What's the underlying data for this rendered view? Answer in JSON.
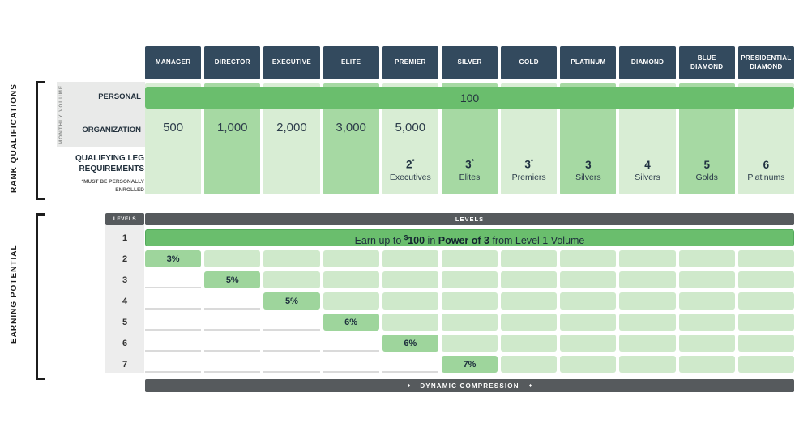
{
  "colors": {
    "header_navy": "#334a5e",
    "bar_dark_gray": "#565a5d",
    "green_solid": "#6abe6d",
    "green_column_light": "#d8edd4",
    "green_column_medium": "#a6d9a3",
    "green_pct_cell": "#9ed59c",
    "green_segment": "#cfe9cb",
    "left_gray": "#e9eae9",
    "text_dark": "#23313d"
  },
  "rank_qualifications": {
    "section_label": "RANK QUALIFICATIONS",
    "monthly_volume_label": "MONTHLY VOLUME",
    "personal_label": "PERSONAL",
    "organization_label": "ORGANIZATION",
    "qualifying_label": "QUALIFYING LEG REQUIREMENTS",
    "qualifying_note": "*MUST BE PERSONALLY ENROLLED",
    "personal_value": "100",
    "columns": [
      {
        "rank": "MANAGER",
        "shade": "light",
        "organization": "500",
        "leg_value": "",
        "leg_star": false,
        "leg_label": ""
      },
      {
        "rank": "DIRECTOR",
        "shade": "medium",
        "organization": "1,000",
        "leg_value": "",
        "leg_star": false,
        "leg_label": ""
      },
      {
        "rank": "EXECUTIVE",
        "shade": "light",
        "organization": "2,000",
        "leg_value": "",
        "leg_star": false,
        "leg_label": ""
      },
      {
        "rank": "ELITE",
        "shade": "medium",
        "organization": "3,000",
        "leg_value": "",
        "leg_star": false,
        "leg_label": ""
      },
      {
        "rank": "PREMIER",
        "shade": "light",
        "organization": "5,000",
        "leg_value": "2",
        "leg_star": true,
        "leg_label": "Executives"
      },
      {
        "rank": "SILVER",
        "shade": "medium",
        "organization": "",
        "leg_value": "3",
        "leg_star": true,
        "leg_label": "Elites"
      },
      {
        "rank": "GOLD",
        "shade": "light",
        "organization": "",
        "leg_value": "3",
        "leg_star": true,
        "leg_label": "Premiers"
      },
      {
        "rank": "PLATINUM",
        "shade": "medium",
        "organization": "",
        "leg_value": "3",
        "leg_star": false,
        "leg_label": "Silvers"
      },
      {
        "rank": "DIAMOND",
        "shade": "light",
        "organization": "",
        "leg_value": "4",
        "leg_star": false,
        "leg_label": "Silvers"
      },
      {
        "rank": "BLUE DIAMOND",
        "shade": "medium",
        "organization": "",
        "leg_value": "5",
        "leg_star": false,
        "leg_label": "Golds"
      },
      {
        "rank": "PRESIDENTIAL DIAMOND",
        "shade": "light",
        "organization": "",
        "leg_value": "6",
        "leg_star": false,
        "leg_label": "Platinums"
      }
    ]
  },
  "earning_potential": {
    "section_label": "EARNING POTENTIAL",
    "levels_label": "LEVELS",
    "level1": {
      "pre": "Earn up to",
      "currency": "$",
      "amount": "100",
      "mid": "in",
      "bold": "Power of 3",
      "post": "from Level 1 Volume"
    },
    "levels": [
      {
        "num": "1"
      },
      {
        "num": "2",
        "pct": "3%",
        "col": 0
      },
      {
        "num": "3",
        "pct": "5%",
        "col": 1
      },
      {
        "num": "4",
        "pct": "5%",
        "col": 2
      },
      {
        "num": "5",
        "pct": "6%",
        "col": 3
      },
      {
        "num": "6",
        "pct": "6%",
        "col": 4
      },
      {
        "num": "7",
        "pct": "7%",
        "col": 5
      }
    ],
    "compression": {
      "label": "DYNAMIC COMPRESSION",
      "diamond_icon": "♦"
    }
  },
  "chart_data": {
    "type": "table",
    "title": "Rank Qualifications and Earning Potential",
    "ranks": [
      "MANAGER",
      "DIRECTOR",
      "EXECUTIVE",
      "ELITE",
      "PREMIER",
      "SILVER",
      "GOLD",
      "PLATINUM",
      "DIAMOND",
      "BLUE DIAMOND",
      "PRESIDENTIAL DIAMOND"
    ],
    "personal_monthly_volume_all_ranks": 100,
    "organization_monthly_volume": {
      "MANAGER": 500,
      "DIRECTOR": 1000,
      "EXECUTIVE": 2000,
      "ELITE": 3000,
      "PREMIER": 5000
    },
    "qualifying_leg_requirements": {
      "PREMIER": "2* Executives",
      "SILVER": "3* Elites",
      "GOLD": "3* Premiers",
      "PLATINUM": "3 Silvers",
      "DIAMOND": "4 Silvers",
      "BLUE DIAMOND": "5 Golds",
      "PRESIDENTIAL DIAMOND": "6 Platinums"
    },
    "qualifying_note": "*Must be personally enrolled",
    "level_payouts": {
      "1": "Earn up to $100 in Power of 3 from Level 1 Volume",
      "2": "3%",
      "3": "5%",
      "4": "5%",
      "5": "6%",
      "6": "6%",
      "7": "7%"
    },
    "level_unlock_rank": {
      "2": "MANAGER",
      "3": "DIRECTOR",
      "4": "EXECUTIVE",
      "5": "ELITE",
      "6": "PREMIER",
      "7": "SILVER"
    },
    "footer": "DYNAMIC COMPRESSION"
  }
}
